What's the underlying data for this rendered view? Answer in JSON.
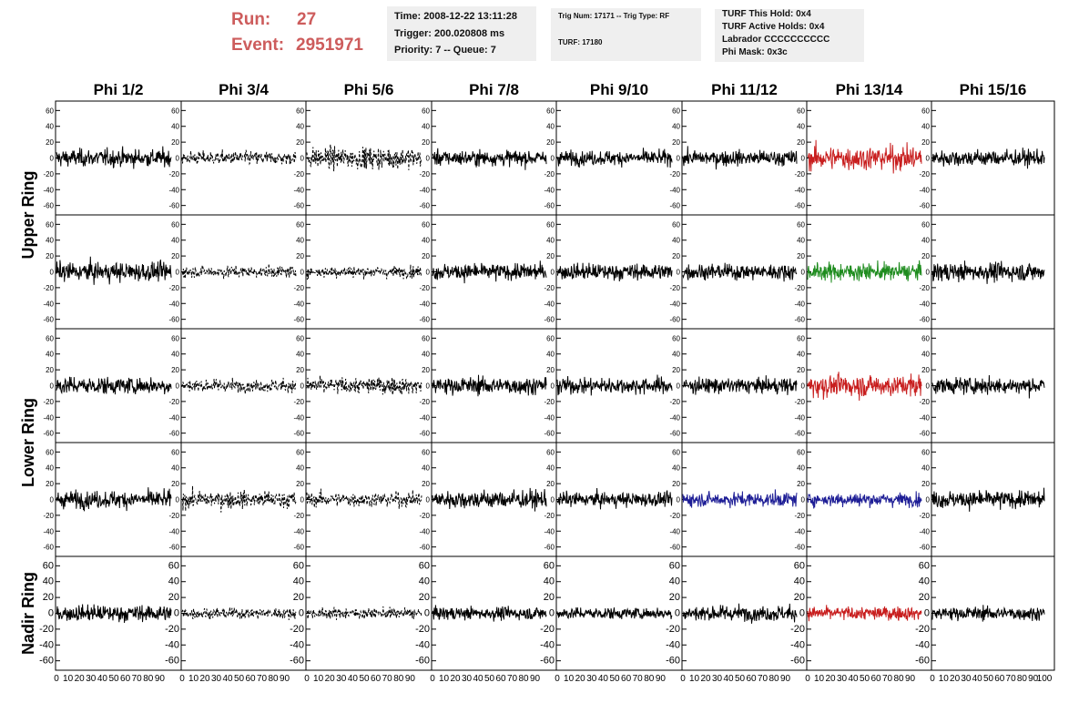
{
  "header": {
    "run_label": "Run:",
    "run_value": "27",
    "event_label": "Event:",
    "event_value": "2951971",
    "box1": [
      "Time: 2008-12-22 13:11:28",
      "Trigger: 200.020808 ms",
      "Priority: 7 -- Queue: 7"
    ],
    "box2": [
      "Trig Num: 17171 -- Trig Type: RF",
      "TURF: 17180"
    ],
    "box3": [
      "TURF This Hold: 0x4",
      "TURF Active Holds: 0x4",
      "Labrador CCCCCCCCCC",
      "Phi Mask: 0x3c"
    ]
  },
  "chart_data": {
    "type": "line",
    "columns": [
      "Phi 1/2",
      "Phi 3/4",
      "Phi 5/6",
      "Phi 7/8",
      "Phi 9/10",
      "Phi 11/12",
      "Phi 13/14",
      "Phi 15/16"
    ],
    "ring_labels": [
      "Upper Ring",
      "Lower Ring",
      "Nadir Ring"
    ],
    "ring_rows": [
      [
        0,
        1
      ],
      [
        2,
        3
      ],
      [
        4
      ]
    ],
    "row_count": 5,
    "xlim": [
      0,
      100
    ],
    "ylim": [
      -65,
      65
    ],
    "yticks": [
      -60,
      -40,
      -20,
      0,
      20,
      40,
      60
    ],
    "xticks": [
      0,
      10,
      20,
      30,
      40,
      50,
      60,
      70,
      80,
      90,
      100
    ],
    "xtick_label_text": "0 10 20 30 40 50 60 70 80 90 100",
    "colors": {
      "default": "#000000",
      "red": "#c81e1e",
      "green": "#1e8c1e",
      "blue": "#1e1e96",
      "title_red": "#cd5c5c"
    },
    "panel_styles": [
      [
        "solid",
        "dashed",
        "dashed",
        "solid",
        "solid",
        "solid",
        "solid",
        "solid"
      ],
      [
        "solid",
        "dashed",
        "dashed",
        "solid",
        "solid",
        "solid",
        "solid",
        "solid"
      ],
      [
        "solid",
        "dashed",
        "dashed",
        "solid",
        "solid",
        "solid",
        "solid",
        "solid"
      ],
      [
        "solid",
        "dashed",
        "dashed",
        "solid",
        "solid",
        "solid",
        "solid",
        "solid"
      ],
      [
        "solid",
        "dashed",
        "dashed",
        "solid",
        "solid",
        "solid",
        "solid",
        "solid"
      ]
    ],
    "panel_colors": [
      [
        "default",
        "default",
        "default",
        "default",
        "default",
        "default",
        "red",
        "default"
      ],
      [
        "default",
        "default",
        "default",
        "default",
        "default",
        "default",
        "green",
        "default"
      ],
      [
        "default",
        "default",
        "default",
        "default",
        "default",
        "default",
        "red",
        "default"
      ],
      [
        "default",
        "default",
        "default",
        "default",
        "default",
        "blue",
        "blue",
        "default"
      ],
      [
        "default",
        "default",
        "default",
        "default",
        "default",
        "default",
        "red",
        "default"
      ]
    ],
    "panel_amplitudes": [
      [
        18,
        14,
        22,
        16,
        15,
        16,
        25,
        17
      ],
      [
        20,
        12,
        12,
        17,
        17,
        16,
        18,
        19
      ],
      [
        18,
        13,
        17,
        18,
        17,
        16,
        23,
        17
      ],
      [
        18,
        18,
        15,
        19,
        15,
        15,
        14,
        18
      ],
      [
        17,
        11,
        11,
        13,
        12,
        16,
        14,
        14
      ]
    ]
  }
}
